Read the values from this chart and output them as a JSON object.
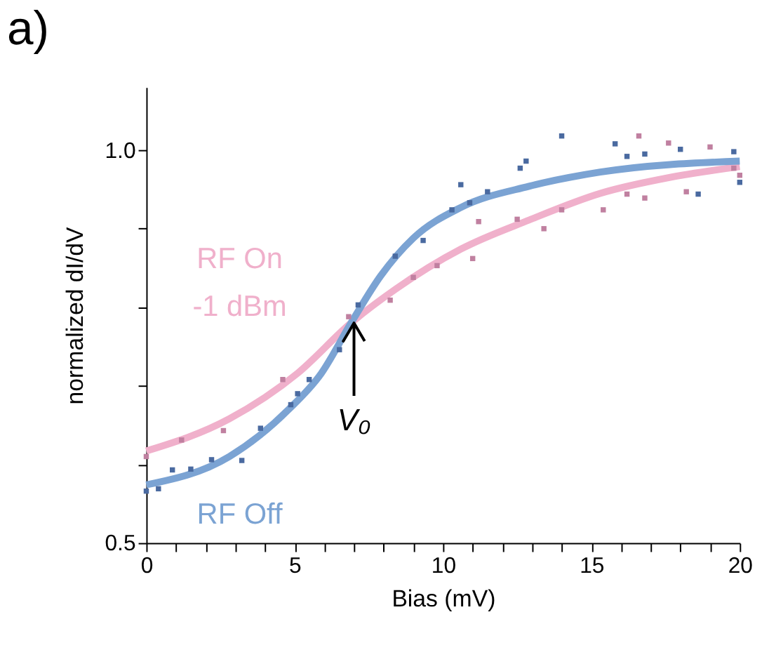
{
  "chart_data": {
    "type": "line",
    "xlabel": "Bias (mV)",
    "ylabel": "normalized dI/dV",
    "xlim": [
      0,
      20
    ],
    "ylim": [
      0.5,
      1.08
    ],
    "xticks": [
      0,
      {
        "value": 1,
        "label": null
      },
      {
        "value": 2,
        "label": null
      },
      {
        "value": 3,
        "label": null
      },
      {
        "value": 4,
        "label": null
      },
      5,
      {
        "value": 6,
        "label": null
      },
      {
        "value": 7,
        "label": null
      },
      {
        "value": 8,
        "label": null
      },
      {
        "value": 9,
        "label": null
      },
      10,
      {
        "value": 11,
        "label": null
      },
      {
        "value": 12,
        "label": null
      },
      {
        "value": 13,
        "label": null
      },
      {
        "value": 14,
        "label": null
      },
      15,
      {
        "value": 16,
        "label": null
      },
      {
        "value": 17,
        "label": null
      },
      {
        "value": 18,
        "label": null
      },
      {
        "value": 19,
        "label": null
      },
      20
    ],
    "yticks": [
      0.5,
      {
        "value": 0.6,
        "label": null
      },
      {
        "value": 0.7,
        "label": null
      },
      {
        "value": 0.8,
        "label": null
      },
      {
        "value": 0.9,
        "label": null
      },
      {
        "value": 1.0,
        "label": "1.0"
      }
    ],
    "grid": false,
    "annotations": [
      "a)",
      {
        "text": "V₀",
        "x": 7,
        "y": 0.78
      }
    ],
    "series": [
      {
        "type": "scatter",
        "marker": "square",
        "color": "#4a6aa0",
        "x": [
          0,
          0.41,
          0.88,
          1.5,
          2.2,
          3.22,
          3.85,
          4.87,
          5.1,
          5.49,
          6.51,
          7.14,
          8.39,
          9.33,
          10.3,
          10.6,
          10.9,
          11.5,
          12.6,
          12.8,
          14.0,
          15.8,
          16.2,
          16.8,
          18.0,
          18.6,
          19.8,
          20
        ],
        "values": [
          0.566,
          0.569,
          0.593,
          0.594,
          0.606,
          0.605,
          0.646,
          0.676,
          0.69,
          0.708,
          0.746,
          0.803,
          0.865,
          0.885,
          0.924,
          0.956,
          0.933,
          0.947,
          0.977,
          0.986,
          1.018,
          1.008,
          0.992,
          0.995,
          1.001,
          0.944,
          0.998,
          0.959
        ]
      },
      {
        "type": "scatter",
        "marker": "square",
        "color": "#c080a0",
        "x": [
          0,
          1.19,
          2.6,
          4.6,
          6.82,
          8.22,
          9.0,
          9.8,
          11.0,
          11.2,
          12.5,
          13.4,
          14.0,
          15.4,
          16.2,
          16.6,
          16.8,
          17.6,
          18.2,
          19.0,
          19.8,
          20
        ],
        "values": [
          0.61,
          0.631,
          0.643,
          0.708,
          0.788,
          0.809,
          0.838,
          0.853,
          0.862,
          0.909,
          0.912,
          0.9,
          0.924,
          0.924,
          0.944,
          1.018,
          0.939,
          1.009,
          0.947,
          1.004,
          0.977,
          0.968
        ]
      },
      {
        "type": "line",
        "marker": "none",
        "name": "RF On\n-1 dBm",
        "color": "#f0b0cb",
        "x": [
          0,
          2.8,
          5.1,
          6.9,
          8.4,
          10.6,
          12.9,
          15.3,
          17.6,
          20
        ],
        "values": [
          0.617,
          0.658,
          0.716,
          0.78,
          0.823,
          0.874,
          0.911,
          0.945,
          0.965,
          0.979
        ]
      },
      {
        "type": "line",
        "marker": "none",
        "name": "RF Off",
        "color": "#7ba3d3",
        "x": [
          0,
          2.8,
          4.8,
          5.9,
          6.9,
          7.9,
          9.0,
          10.6,
          12.9,
          15.3,
          20
        ],
        "values": [
          0.574,
          0.61,
          0.67,
          0.716,
          0.78,
          0.84,
          0.888,
          0.927,
          0.954,
          0.972,
          0.986
        ]
      }
    ]
  }
}
